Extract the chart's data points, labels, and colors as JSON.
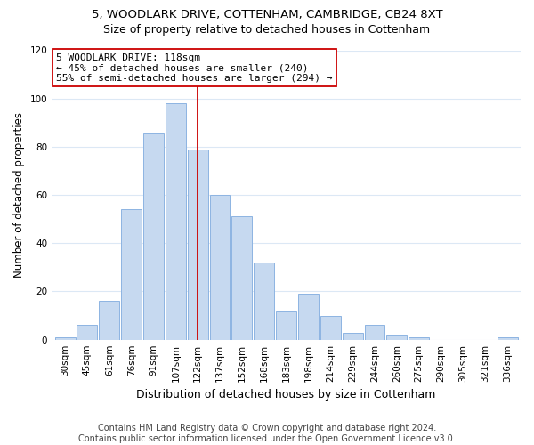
{
  "title": "5, WOODLARK DRIVE, COTTENHAM, CAMBRIDGE, CB24 8XT",
  "subtitle": "Size of property relative to detached houses in Cottenham",
  "xlabel": "Distribution of detached houses by size in Cottenham",
  "ylabel": "Number of detached properties",
  "bar_labels": [
    "30sqm",
    "45sqm",
    "61sqm",
    "76sqm",
    "91sqm",
    "107sqm",
    "122sqm",
    "137sqm",
    "152sqm",
    "168sqm",
    "183sqm",
    "198sqm",
    "214sqm",
    "229sqm",
    "244sqm",
    "260sqm",
    "275sqm",
    "290sqm",
    "305sqm",
    "321sqm",
    "336sqm"
  ],
  "bar_heights": [
    1,
    6,
    16,
    54,
    86,
    98,
    79,
    60,
    51,
    32,
    12,
    19,
    10,
    3,
    6,
    2,
    1,
    0,
    0,
    0,
    1
  ],
  "bar_color": "#c6d9f0",
  "bar_edge_color": "#8db4e2",
  "vline_x": 6,
  "vline_color": "#cc0000",
  "annotation_text": "5 WOODLARK DRIVE: 118sqm\n← 45% of detached houses are smaller (240)\n55% of semi-detached houses are larger (294) →",
  "annotation_box_edge": "#cc0000",
  "annotation_box_face": "#ffffff",
  "ylim": [
    0,
    120
  ],
  "yticks": [
    0,
    20,
    40,
    60,
    80,
    100,
    120
  ],
  "footer_text": "Contains HM Land Registry data © Crown copyright and database right 2024.\nContains public sector information licensed under the Open Government Licence v3.0.",
  "title_fontsize": 9.5,
  "subtitle_fontsize": 9,
  "xlabel_fontsize": 9,
  "ylabel_fontsize": 8.5,
  "tick_fontsize": 7.5,
  "annotation_fontsize": 8,
  "footer_fontsize": 7,
  "bg_color": "#ffffff",
  "grid_color": "#dce8f5",
  "fig_width": 6.0,
  "fig_height": 5.0,
  "dpi": 100
}
